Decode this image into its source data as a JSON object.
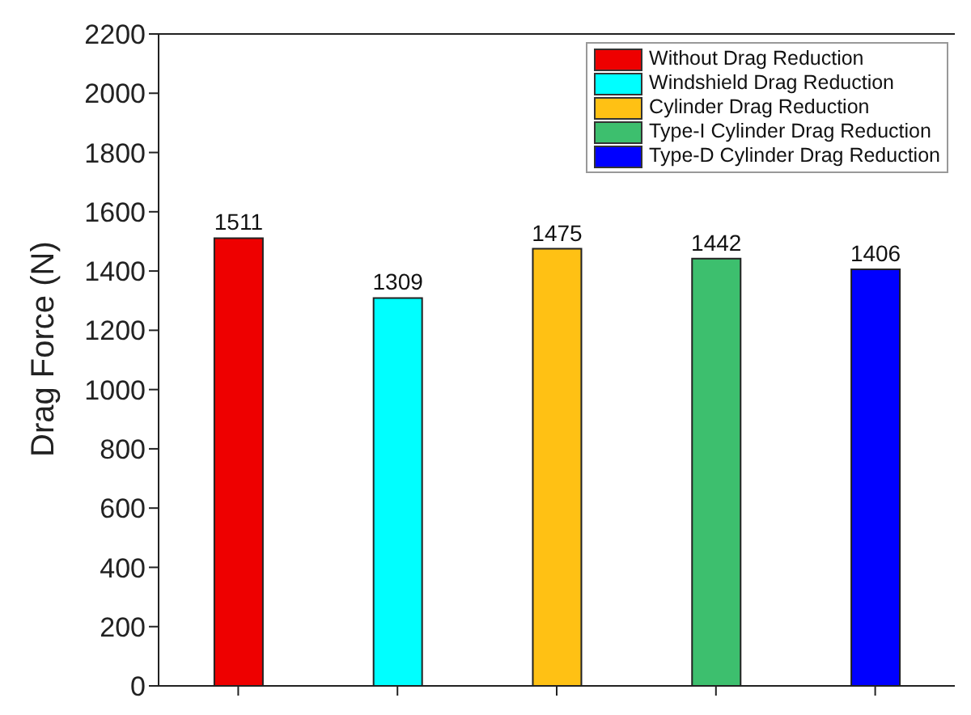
{
  "chart_data": {
    "type": "bar",
    "ylabel": "Drag Force (N)",
    "categories": [
      null,
      null,
      null,
      null,
      null
    ],
    "stacked": true,
    "ylim": [
      0,
      2200
    ],
    "yticks": [
      0,
      200,
      400,
      600,
      800,
      1000,
      1200,
      1400,
      1600,
      1800,
      2000,
      2200
    ],
    "data_labels": true,
    "legend": "top right",
    "grid": false,
    "series": [
      {
        "name": "Without Drag Reduction",
        "color": "#ee0000",
        "values": [
          1511,
          null,
          null,
          null,
          null
        ]
      },
      {
        "name": "Windshield Drag Reduction",
        "color": "#00ffff",
        "values": [
          null,
          1309,
          null,
          null,
          null
        ]
      },
      {
        "name": "Cylinder Drag Reduction",
        "color": "#ffc114",
        "values": [
          null,
          null,
          1475,
          null,
          null
        ]
      },
      {
        "name": "Type-I Cylinder Drag Reduction",
        "color": "#3dbf6e",
        "values": [
          null,
          null,
          null,
          1442,
          null
        ]
      },
      {
        "name": "Type-D Cylinder Drag Reduction",
        "color": "#0000ff",
        "values": [
          null,
          null,
          null,
          null,
          1406
        ]
      }
    ]
  }
}
